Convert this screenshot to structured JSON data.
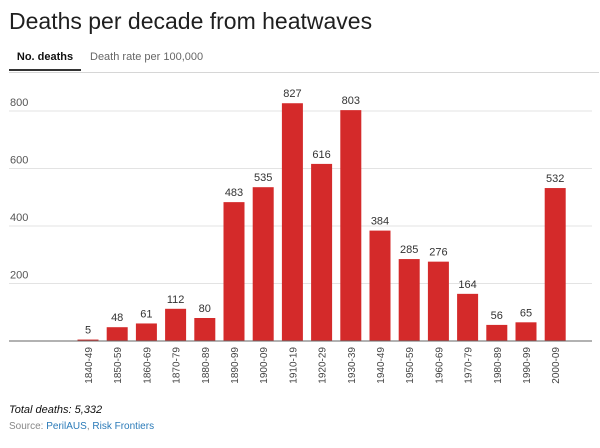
{
  "header": {
    "title": "Deaths per decade from heatwaves"
  },
  "tabs": [
    {
      "label": "No. deaths",
      "active": true
    },
    {
      "label": "Death rate per 100,000",
      "active": false
    }
  ],
  "footer": {
    "total": "Total deaths: 5,332",
    "source_prefix": "Source: ",
    "source_link_1": "PerilAUS",
    "source_sep": ", ",
    "source_link_2": "Risk Frontiers"
  },
  "colors": {
    "bar": "#d42a2a",
    "grid": "#e3e3e3",
    "axis": "#666666",
    "link": "#2a7ab8"
  },
  "chart_data": {
    "type": "bar",
    "title": "Deaths per decade from heatwaves",
    "xlabel": "",
    "ylabel": "",
    "categories": [
      "1840-49",
      "1850-59",
      "1860-69",
      "1870-79",
      "1880-89",
      "1890-99",
      "1900-09",
      "1910-19",
      "1920-29",
      "1930-39",
      "1940-49",
      "1950-59",
      "1960-69",
      "1970-79",
      "1980-89",
      "1990-99",
      "2000-09"
    ],
    "values": [
      5,
      48,
      61,
      112,
      80,
      483,
      535,
      827,
      616,
      803,
      384,
      285,
      276,
      164,
      56,
      65,
      532
    ],
    "yticks": [
      200,
      400,
      600,
      800
    ],
    "ylim": [
      0,
      870
    ],
    "grid": true,
    "data_labels": true
  }
}
